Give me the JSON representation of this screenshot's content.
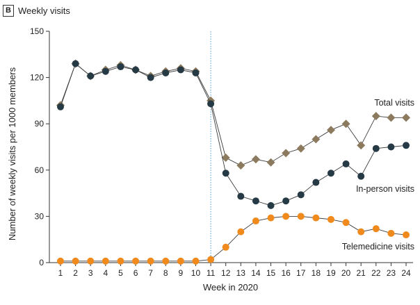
{
  "panel": {
    "letter": "B",
    "title": "Weekly visits"
  },
  "colors": {
    "total": "#8c7a5f",
    "inperson": "#263a45",
    "telemedicine": "#f08a1c",
    "axis": "#333333",
    "vline": "#4a9bd6"
  },
  "chart_data": {
    "type": "line",
    "title": "Weekly visits",
    "xlabel": "Week in 2020",
    "ylabel": "Number of weekly visits per 1000 members",
    "x": [
      1,
      2,
      3,
      4,
      5,
      6,
      7,
      8,
      9,
      10,
      11,
      12,
      13,
      14,
      15,
      16,
      17,
      18,
      19,
      20,
      21,
      22,
      23,
      24
    ],
    "xlim": [
      1,
      24
    ],
    "ylim": [
      0,
      150
    ],
    "yticks": [
      0,
      30,
      60,
      90,
      120,
      150
    ],
    "vertical_reference_week": 11,
    "grid": false,
    "series": [
      {
        "key": "total",
        "name": "Total visits",
        "marker": "diamond",
        "values": [
          102,
          129,
          121,
          125,
          128,
          125,
          121,
          124,
          126,
          124,
          105,
          68,
          63,
          67,
          65,
          71,
          74,
          80,
          86,
          90,
          76,
          95,
          94,
          94
        ]
      },
      {
        "key": "inperson",
        "name": "In-person visits",
        "marker": "circle",
        "values": [
          101,
          129,
          121,
          124,
          127,
          125,
          120,
          123,
          125,
          123,
          103,
          58,
          43,
          40,
          37,
          40,
          44,
          52,
          58,
          64,
          56,
          74,
          75,
          76
        ]
      },
      {
        "key": "telemedicine",
        "name": "Telemedicine visits",
        "marker": "circle",
        "values": [
          1,
          1,
          1,
          1,
          1,
          1,
          1,
          1,
          1,
          1,
          2,
          10,
          20,
          27,
          29,
          30,
          30,
          29,
          28,
          26,
          20,
          22,
          19,
          18
        ]
      }
    ]
  }
}
